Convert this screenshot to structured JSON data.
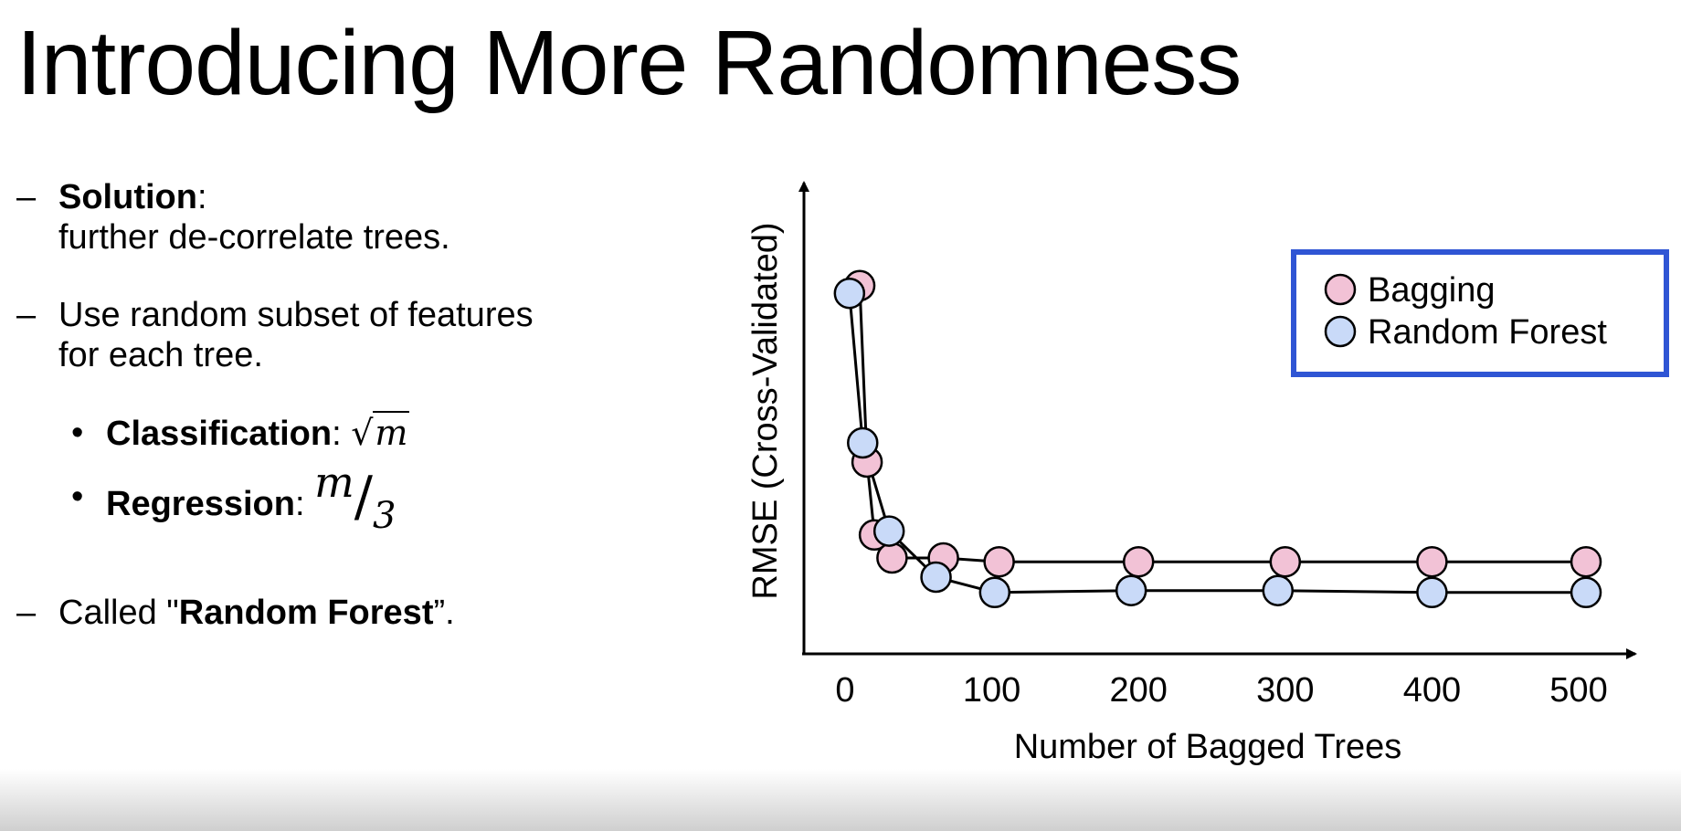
{
  "slide": {
    "title": "Introducing More Randomness"
  },
  "bullets": [
    {
      "dash": "–",
      "bold": "Solution",
      "after": ":",
      "line2": "further de-correlate trees."
    },
    {
      "dash": "–",
      "line1": "Use random subset of features",
      "line2": "for each tree."
    },
    {
      "dash": "–",
      "pre": "Called \"",
      "bold": "Random Forest",
      "after": "”."
    }
  ],
  "sub_bullets": [
    {
      "dot": "•",
      "bold": "Classification",
      "after": ": ",
      "math_radical": "√",
      "math_var": "m"
    },
    {
      "dot": "•",
      "bold": "Regression",
      "after": ": ",
      "num": "m",
      "slash": "/",
      "den": "3"
    }
  ],
  "chart_data": {
    "type": "line",
    "title": "",
    "xlabel": "Number of Bagged Trees",
    "ylabel": "RMSE (Cross-Validated)",
    "xticks": [
      0,
      100,
      200,
      300,
      400,
      500
    ],
    "xlim": [
      -30,
      540
    ],
    "ylim": [
      0,
      1
    ],
    "y_tick_labels_shown": false,
    "grid": false,
    "legend_position": "top-right",
    "legend_border_color": "#2f55d4",
    "series": [
      {
        "name": "Bagging",
        "color": "#f2c2d6",
        "x": [
          10,
          15,
          20,
          32,
          67,
          105,
          200,
          300,
          400,
          505
        ],
        "y": [
          0.96,
          0.5,
          0.31,
          0.25,
          0.25,
          0.24,
          0.24,
          0.24,
          0.24,
          0.24
        ]
      },
      {
        "name": "Random Forest",
        "color": "#c9daf8",
        "x": [
          3,
          12,
          30,
          62,
          102,
          195,
          295,
          400,
          505
        ],
        "y": [
          0.94,
          0.55,
          0.32,
          0.2,
          0.16,
          0.165,
          0.165,
          0.16,
          0.16
        ]
      }
    ]
  }
}
